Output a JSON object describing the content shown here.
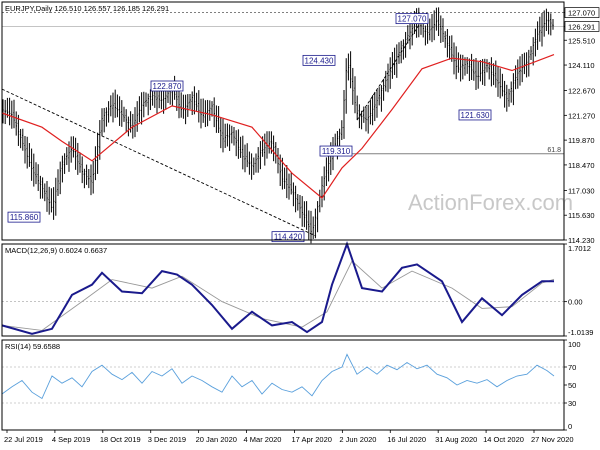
{
  "chart_data": [
    {
      "type": "candlestick",
      "header": "EURJPY,Daily  126.510 126.557 126.185 126.291",
      "watermark": "ActionForex.com",
      "ylim": [
        114.23,
        127.67
      ],
      "y_ticks": [
        "127.070",
        "126.291",
        "125.510",
        "124.110",
        "122.670",
        "121.270",
        "119.870",
        "118.470",
        "117.030",
        "115.630",
        "114.230"
      ],
      "current_price": "126.291",
      "fib_level": {
        "label": "61.8",
        "value": 119.1
      },
      "hline_top": 127.07,
      "annotations": [
        {
          "label": "115.860",
          "value": 115.86
        },
        {
          "label": "122.870",
          "value": 122.87
        },
        {
          "label": "114.420",
          "value": 114.42
        },
        {
          "label": "119.310",
          "value": 119.31
        },
        {
          "label": "124.430",
          "value": 124.43
        },
        {
          "label": "127.070",
          "value": 127.07
        },
        {
          "label": "121.630",
          "value": 121.63
        }
      ],
      "close_path": [
        [
          0,
          121.6
        ],
        [
          10,
          121.3
        ],
        [
          20,
          119.8
        ],
        [
          30,
          118.2
        ],
        [
          40,
          117.2
        ],
        [
          50,
          116.0
        ],
        [
          60,
          118.6
        ],
        [
          70,
          119.4
        ],
        [
          80,
          118.1
        ],
        [
          90,
          117.5
        ],
        [
          100,
          121.1
        ],
        [
          110,
          121.9
        ],
        [
          120,
          121.3
        ],
        [
          130,
          120.6
        ],
        [
          140,
          121.9
        ],
        [
          150,
          122.4
        ],
        [
          160,
          122.1
        ],
        [
          170,
          122.8
        ],
        [
          180,
          121.5
        ],
        [
          190,
          122.3
        ],
        [
          200,
          121.2
        ],
        [
          210,
          121.8
        ],
        [
          220,
          119.9
        ],
        [
          230,
          120.3
        ],
        [
          240,
          119.0
        ],
        [
          250,
          118.4
        ],
        [
          260,
          119.3
        ],
        [
          270,
          119.8
        ],
        [
          280,
          117.7
        ],
        [
          290,
          117.0
        ],
        [
          300,
          115.8
        ],
        [
          310,
          114.6
        ],
        [
          320,
          117.3
        ],
        [
          330,
          119.2
        ],
        [
          340,
          120.6
        ],
        [
          345,
          124.4
        ],
        [
          355,
          121.4
        ],
        [
          365,
          121.0
        ],
        [
          375,
          122.1
        ],
        [
          385,
          123.4
        ],
        [
          395,
          124.6
        ],
        [
          405,
          125.7
        ],
        [
          415,
          126.6
        ],
        [
          425,
          125.9
        ],
        [
          435,
          126.6
        ],
        [
          445,
          125.4
        ],
        [
          455,
          123.9
        ],
        [
          465,
          124.2
        ],
        [
          475,
          123.4
        ],
        [
          485,
          124.1
        ],
        [
          495,
          123.2
        ],
        [
          505,
          122.2
        ],
        [
          515,
          123.6
        ],
        [
          525,
          124.3
        ],
        [
          535,
          125.8
        ],
        [
          545,
          126.7
        ],
        [
          552,
          126.3
        ]
      ],
      "ma_path": [
        [
          0,
          121.4
        ],
        [
          40,
          120.6
        ],
        [
          60,
          119.8
        ],
        [
          90,
          118.7
        ],
        [
          130,
          120.6
        ],
        [
          170,
          121.8
        ],
        [
          210,
          121.3
        ],
        [
          250,
          120.6
        ],
        [
          290,
          118.0
        ],
        [
          320,
          116.6
        ],
        [
          340,
          118.3
        ],
        [
          360,
          119.4
        ],
        [
          390,
          121.6
        ],
        [
          420,
          123.9
        ],
        [
          450,
          124.5
        ],
        [
          480,
          124.3
        ],
        [
          510,
          123.8
        ],
        [
          552,
          124.7
        ]
      ],
      "trendline": [
        [
          0,
          122.75
        ],
        [
          314,
          114.45
        ]
      ]
    },
    {
      "type": "line",
      "header": "MACD(12,26,9) 0.6024 0.6637",
      "ylim": [
        -1.0139,
        1.7012
      ],
      "y_ticks": [
        "1.7012",
        "0.00",
        "-1.0139"
      ],
      "series": [
        {
          "role": "macd",
          "color": "#1a1a8c",
          "points": [
            [
              0,
              -0.7
            ],
            [
              30,
              -0.95
            ],
            [
              50,
              -0.8
            ],
            [
              70,
              0.2
            ],
            [
              90,
              0.5
            ],
            [
              100,
              0.85
            ],
            [
              120,
              0.3
            ],
            [
              140,
              0.25
            ],
            [
              160,
              0.9
            ],
            [
              175,
              0.8
            ],
            [
              190,
              0.5
            ],
            [
              210,
              -0.1
            ],
            [
              230,
              -0.8
            ],
            [
              250,
              -0.3
            ],
            [
              270,
              -0.7
            ],
            [
              290,
              -0.6
            ],
            [
              305,
              -0.9
            ],
            [
              320,
              -0.6
            ],
            [
              330,
              0.5
            ],
            [
              345,
              1.7
            ],
            [
              360,
              0.4
            ],
            [
              380,
              0.3
            ],
            [
              400,
              1.0
            ],
            [
              415,
              1.1
            ],
            [
              440,
              0.6
            ],
            [
              460,
              -0.6
            ],
            [
              480,
              0.1
            ],
            [
              500,
              -0.4
            ],
            [
              520,
              0.2
            ],
            [
              540,
              0.6
            ],
            [
              552,
              0.6
            ]
          ]
        },
        {
          "role": "signal",
          "color": "#999999",
          "points": [
            [
              0,
              -0.7
            ],
            [
              40,
              -0.85
            ],
            [
              80,
              0.0
            ],
            [
              110,
              0.65
            ],
            [
              150,
              0.4
            ],
            [
              180,
              0.75
            ],
            [
              220,
              0.0
            ],
            [
              260,
              -0.5
            ],
            [
              300,
              -0.75
            ],
            [
              325,
              -0.3
            ],
            [
              350,
              1.2
            ],
            [
              380,
              0.4
            ],
            [
              410,
              0.9
            ],
            [
              450,
              0.4
            ],
            [
              480,
              -0.2
            ],
            [
              510,
              -0.15
            ],
            [
              540,
              0.55
            ],
            [
              552,
              0.66
            ]
          ]
        }
      ]
    },
    {
      "type": "line",
      "header": "RSI(14) 59.6588",
      "ylim": [
        0,
        100
      ],
      "y_ticks": [
        "100",
        "70",
        "50",
        "30",
        "0"
      ],
      "y_tick_values": [
        100,
        70,
        50,
        30,
        0
      ],
      "levels": [
        70,
        30
      ],
      "series": [
        {
          "role": "rsi",
          "color": "#5aa0dc",
          "points": [
            [
              0,
              40
            ],
            [
              10,
              48
            ],
            [
              20,
              55
            ],
            [
              30,
              42
            ],
            [
              40,
              35
            ],
            [
              50,
              60
            ],
            [
              60,
              52
            ],
            [
              70,
              58
            ],
            [
              80,
              48
            ],
            [
              90,
              65
            ],
            [
              100,
              72
            ],
            [
              110,
              62
            ],
            [
              120,
              56
            ],
            [
              130,
              64
            ],
            [
              140,
              52
            ],
            [
              150,
              65
            ],
            [
              160,
              60
            ],
            [
              170,
              68
            ],
            [
              180,
              52
            ],
            [
              190,
              60
            ],
            [
              200,
              55
            ],
            [
              210,
              48
            ],
            [
              220,
              42
            ],
            [
              230,
              60
            ],
            [
              240,
              48
            ],
            [
              250,
              55
            ],
            [
              260,
              40
            ],
            [
              270,
              52
            ],
            [
              280,
              45
            ],
            [
              290,
              42
            ],
            [
              300,
              48
            ],
            [
              310,
              38
            ],
            [
              320,
              55
            ],
            [
              330,
              65
            ],
            [
              340,
              70
            ],
            [
              345,
              84
            ],
            [
              355,
              62
            ],
            [
              365,
              70
            ],
            [
              375,
              62
            ],
            [
              385,
              72
            ],
            [
              395,
              67
            ],
            [
              405,
              75
            ],
            [
              415,
              68
            ],
            [
              425,
              72
            ],
            [
              435,
              62
            ],
            [
              445,
              58
            ],
            [
              455,
              50
            ],
            [
              465,
              55
            ],
            [
              475,
              52
            ],
            [
              485,
              56
            ],
            [
              495,
              48
            ],
            [
              505,
              55
            ],
            [
              515,
              60
            ],
            [
              525,
              62
            ],
            [
              535,
              72
            ],
            [
              545,
              66
            ],
            [
              552,
              60
            ]
          ]
        }
      ]
    }
  ],
  "x_ticks": [
    "22 Jul 2019",
    "4 Sep 2019",
    "18 Oct 2019",
    "3 Dec 2019",
    "20 Jan 2020",
    "4 Mar 2020",
    "17 Apr 2020",
    "2 Jun 2020",
    "16 Jul 2020",
    "31 Aug 2020",
    "14 Oct 2020",
    "27 Nov 2020"
  ],
  "colors": {
    "candle": "#000000",
    "ma": "#e02020",
    "trendline": "#000000",
    "fib": "#808080",
    "label_border": "#1a1a8c",
    "price_box": "#ffffff",
    "watermark": "#c8c8c8"
  }
}
